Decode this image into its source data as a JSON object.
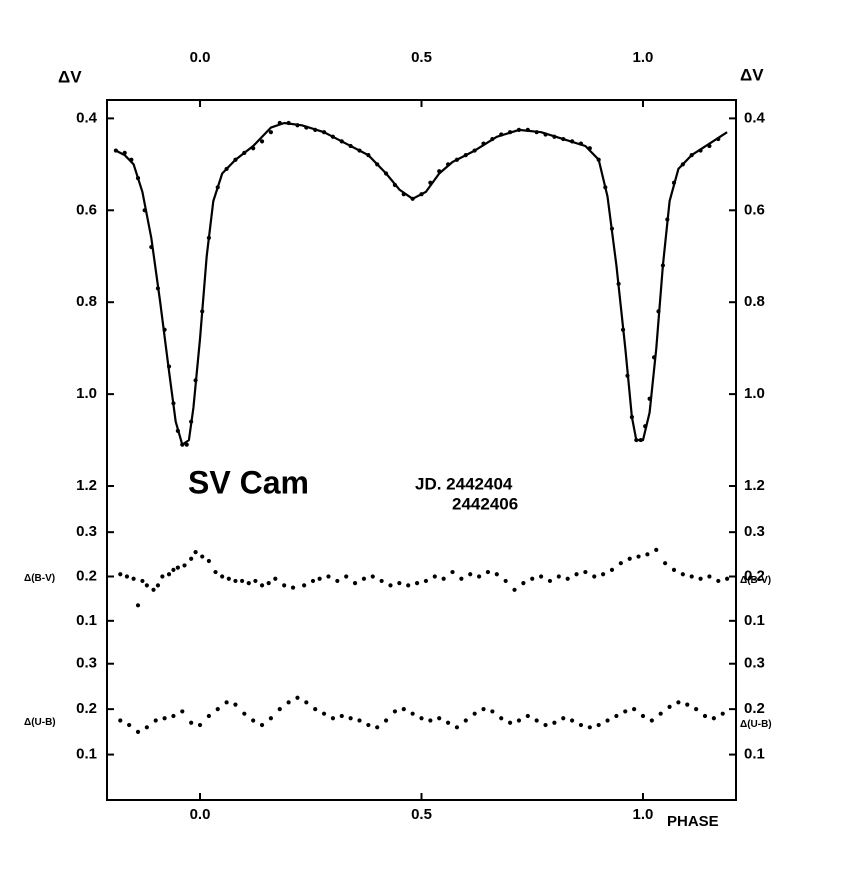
{
  "chart_data": [
    {
      "type": "line",
      "y_label": "ΔV",
      "annotations": [
        "SV Cam",
        "JD. 2442404",
        "2442406"
      ],
      "xlim": [
        -0.21,
        1.21
      ],
      "xticks": [
        {
          "value": 0,
          "label": "0.0"
        },
        0.5,
        {
          "value": 1,
          "label": "1.0"
        }
      ],
      "ylim": [
        0.36,
        1.25
      ],
      "y_inverted": true,
      "yticks": [
        0.4,
        0.6,
        0.8,
        {
          "value": 1,
          "label": "1.0"
        },
        1.2
      ],
      "series": [
        {
          "mode": "markers",
          "color": "#000000",
          "x": [
            -0.19,
            -0.17,
            -0.155,
            -0.14,
            -0.125,
            -0.11,
            -0.095,
            -0.08,
            -0.07,
            -0.06,
            -0.05,
            -0.04,
            -0.03,
            -0.02,
            -0.01,
            0.005,
            0.02,
            0.04,
            0.06,
            0.08,
            0.1,
            0.12,
            0.14,
            0.16,
            0.18,
            0.2,
            0.22,
            0.24,
            0.26,
            0.28,
            0.3,
            0.32,
            0.34,
            0.36,
            0.38,
            0.4,
            0.42,
            0.44,
            0.46,
            0.48,
            0.5,
            0.52,
            0.54,
            0.56,
            0.58,
            0.6,
            0.62,
            0.64,
            0.66,
            0.68,
            0.7,
            0.72,
            0.74,
            0.76,
            0.78,
            0.8,
            0.82,
            0.84,
            0.86,
            0.88,
            0.9,
            0.915,
            0.93,
            0.945,
            0.955,
            0.965,
            0.975,
            0.985,
            0.995,
            1.005,
            1.015,
            1.025,
            1.035,
            1.045,
            1.055,
            1.07,
            1.09,
            1.11,
            1.13,
            1.15,
            1.17
          ],
          "values": [
            0.47,
            0.475,
            0.49,
            0.53,
            0.6,
            0.68,
            0.77,
            0.86,
            0.94,
            1.02,
            1.08,
            1.11,
            1.11,
            1.06,
            0.97,
            0.82,
            0.66,
            0.55,
            0.51,
            0.49,
            0.475,
            0.465,
            0.45,
            0.43,
            0.41,
            0.41,
            0.415,
            0.42,
            0.425,
            0.43,
            0.44,
            0.45,
            0.46,
            0.47,
            0.48,
            0.5,
            0.52,
            0.545,
            0.565,
            0.575,
            0.565,
            0.54,
            0.515,
            0.5,
            0.49,
            0.48,
            0.47,
            0.455,
            0.445,
            0.435,
            0.43,
            0.425,
            0.425,
            0.43,
            0.435,
            0.44,
            0.445,
            0.45,
            0.455,
            0.465,
            0.49,
            0.55,
            0.64,
            0.76,
            0.86,
            0.96,
            1.05,
            1.1,
            1.1,
            1.07,
            1.01,
            0.92,
            0.82,
            0.72,
            0.62,
            0.54,
            0.5,
            0.48,
            0.47,
            0.46,
            0.445
          ]
        },
        {
          "mode": "lines",
          "color": "#000000",
          "x": [
            -0.19,
            -0.17,
            -0.15,
            -0.13,
            -0.11,
            -0.09,
            -0.07,
            -0.055,
            -0.04,
            -0.025,
            -0.015,
            0.0,
            0.015,
            0.03,
            0.05,
            0.08,
            0.12,
            0.16,
            0.19,
            0.23,
            0.28,
            0.33,
            0.38,
            0.42,
            0.45,
            0.48,
            0.51,
            0.54,
            0.57,
            0.62,
            0.67,
            0.72,
            0.77,
            0.82,
            0.87,
            0.9,
            0.92,
            0.94,
            0.96,
            0.975,
            0.985,
            1.0,
            1.015,
            1.03,
            1.045,
            1.06,
            1.08,
            1.11,
            1.15,
            1.19
          ],
          "values": [
            0.47,
            0.48,
            0.5,
            0.56,
            0.66,
            0.8,
            0.95,
            1.06,
            1.11,
            1.1,
            1.03,
            0.88,
            0.7,
            0.58,
            0.52,
            0.49,
            0.46,
            0.42,
            0.41,
            0.415,
            0.43,
            0.455,
            0.48,
            0.52,
            0.555,
            0.575,
            0.56,
            0.52,
            0.495,
            0.47,
            0.44,
            0.425,
            0.43,
            0.445,
            0.46,
            0.49,
            0.57,
            0.72,
            0.9,
            1.05,
            1.1,
            1.1,
            1.04,
            0.9,
            0.72,
            0.58,
            0.51,
            0.48,
            0.455,
            0.43
          ]
        }
      ]
    },
    {
      "type": "scatter",
      "y_label": "Δ(B-V)",
      "xlim": [
        -0.21,
        1.21
      ],
      "ylim": [
        0.05,
        0.35
      ],
      "yticks": [
        0.1,
        0.2,
        0.3
      ],
      "series": [
        {
          "color": "#000000",
          "x": [
            -0.18,
            -0.165,
            -0.15,
            -0.14,
            -0.13,
            -0.12,
            -0.105,
            -0.095,
            -0.085,
            -0.07,
            -0.06,
            -0.05,
            -0.035,
            -0.02,
            -0.01,
            0.005,
            0.02,
            0.035,
            0.05,
            0.065,
            0.08,
            0.095,
            0.11,
            0.125,
            0.14,
            0.155,
            0.17,
            0.19,
            0.21,
            0.235,
            0.255,
            0.27,
            0.29,
            0.31,
            0.33,
            0.35,
            0.37,
            0.39,
            0.41,
            0.43,
            0.45,
            0.47,
            0.49,
            0.51,
            0.53,
            0.55,
            0.57,
            0.59,
            0.61,
            0.63,
            0.65,
            0.67,
            0.69,
            0.71,
            0.73,
            0.75,
            0.77,
            0.79,
            0.81,
            0.83,
            0.85,
            0.87,
            0.89,
            0.91,
            0.93,
            0.95,
            0.97,
            0.99,
            1.01,
            1.03,
            1.05,
            1.07,
            1.09,
            1.11,
            1.13,
            1.15,
            1.17,
            1.19
          ],
          "values": [
            0.205,
            0.2,
            0.195,
            0.135,
            0.19,
            0.18,
            0.17,
            0.18,
            0.2,
            0.205,
            0.215,
            0.22,
            0.225,
            0.24,
            0.255,
            0.245,
            0.235,
            0.21,
            0.2,
            0.195,
            0.19,
            0.19,
            0.185,
            0.19,
            0.18,
            0.185,
            0.195,
            0.18,
            0.175,
            0.18,
            0.19,
            0.195,
            0.2,
            0.19,
            0.2,
            0.185,
            0.195,
            0.2,
            0.19,
            0.18,
            0.185,
            0.18,
            0.185,
            0.19,
            0.2,
            0.195,
            0.21,
            0.195,
            0.205,
            0.2,
            0.21,
            0.205,
            0.19,
            0.17,
            0.185,
            0.195,
            0.2,
            0.19,
            0.2,
            0.195,
            0.205,
            0.21,
            0.2,
            0.205,
            0.215,
            0.23,
            0.24,
            0.245,
            0.25,
            0.26,
            0.23,
            0.215,
            0.205,
            0.2,
            0.195,
            0.2,
            0.19,
            0.195
          ]
        }
      ]
    },
    {
      "type": "scatter",
      "y_label": "Δ(U-B)",
      "x_label": "PHASE",
      "xlim": [
        -0.21,
        1.21
      ],
      "xticks": [
        {
          "value": 0,
          "label": "0.0"
        },
        0.5,
        {
          "value": 1,
          "label": "1.0"
        }
      ],
      "ylim": [
        0,
        0.35
      ],
      "yticks": [
        0.1,
        0.2,
        0.3
      ],
      "series": [
        {
          "color": "#000000",
          "x": [
            -0.18,
            -0.16,
            -0.14,
            -0.12,
            -0.1,
            -0.08,
            -0.06,
            -0.04,
            -0.02,
            0.0,
            0.02,
            0.04,
            0.06,
            0.08,
            0.1,
            0.12,
            0.14,
            0.16,
            0.18,
            0.2,
            0.22,
            0.24,
            0.26,
            0.28,
            0.3,
            0.32,
            0.34,
            0.36,
            0.38,
            0.4,
            0.42,
            0.44,
            0.46,
            0.48,
            0.5,
            0.52,
            0.54,
            0.56,
            0.58,
            0.6,
            0.62,
            0.64,
            0.66,
            0.68,
            0.7,
            0.72,
            0.74,
            0.76,
            0.78,
            0.8,
            0.82,
            0.84,
            0.86,
            0.88,
            0.9,
            0.92,
            0.94,
            0.96,
            0.98,
            1.0,
            1.02,
            1.04,
            1.06,
            1.08,
            1.1,
            1.12,
            1.14,
            1.16,
            1.18
          ],
          "values": [
            0.175,
            0.165,
            0.15,
            0.16,
            0.175,
            0.18,
            0.185,
            0.195,
            0.17,
            0.165,
            0.185,
            0.2,
            0.215,
            0.21,
            0.19,
            0.175,
            0.165,
            0.18,
            0.2,
            0.215,
            0.225,
            0.215,
            0.2,
            0.19,
            0.18,
            0.185,
            0.18,
            0.175,
            0.165,
            0.16,
            0.175,
            0.195,
            0.2,
            0.19,
            0.18,
            0.175,
            0.18,
            0.17,
            0.16,
            0.175,
            0.19,
            0.2,
            0.195,
            0.18,
            0.17,
            0.175,
            0.185,
            0.175,
            0.165,
            0.17,
            0.18,
            0.175,
            0.165,
            0.16,
            0.165,
            0.175,
            0.185,
            0.195,
            0.2,
            0.185,
            0.175,
            0.19,
            0.205,
            0.215,
            0.21,
            0.2,
            0.185,
            0.18,
            0.19
          ]
        }
      ]
    }
  ]
}
